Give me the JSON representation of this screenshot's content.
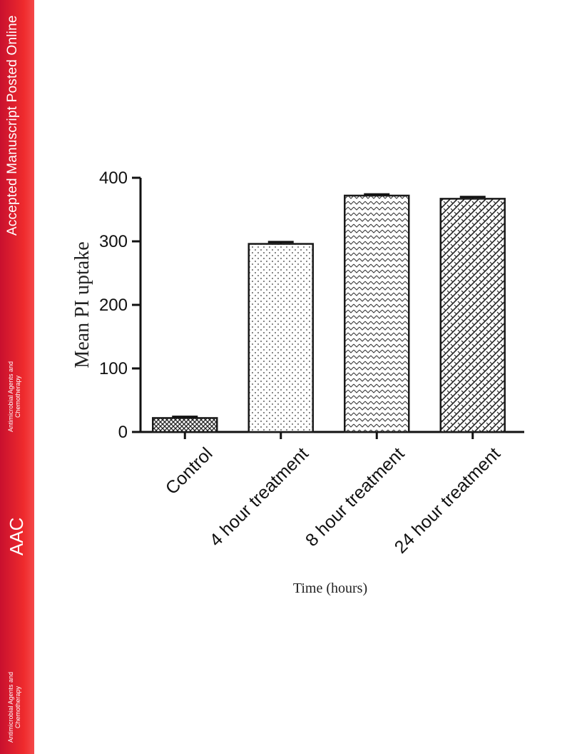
{
  "banner": {
    "online_label": "Accepted Manuscript Posted Online",
    "journal_abbrev": "AAC",
    "journal_name_line1": "Antimicrobial Agents and",
    "journal_name_line2": "Chemotherapy",
    "banner_color": "#ef2b2d"
  },
  "chart_data": {
    "type": "bar",
    "categories": [
      "Control",
      "4 hour treatment",
      "8 hour treatment",
      "24 hour treatment"
    ],
    "values": [
      22,
      296,
      372,
      367
    ],
    "errors": [
      2,
      3,
      2,
      3
    ],
    "patterns": [
      "crosshatch",
      "dots",
      "chevron",
      "diagonal-weave"
    ],
    "xlabel": "Time (hours)",
    "ylabel": "Mean PI uptake",
    "ylim": [
      0,
      400
    ],
    "yticks": [
      0,
      100,
      200,
      300,
      400
    ],
    "grid": false,
    "bar_edge_color": "#1a1a1a"
  }
}
